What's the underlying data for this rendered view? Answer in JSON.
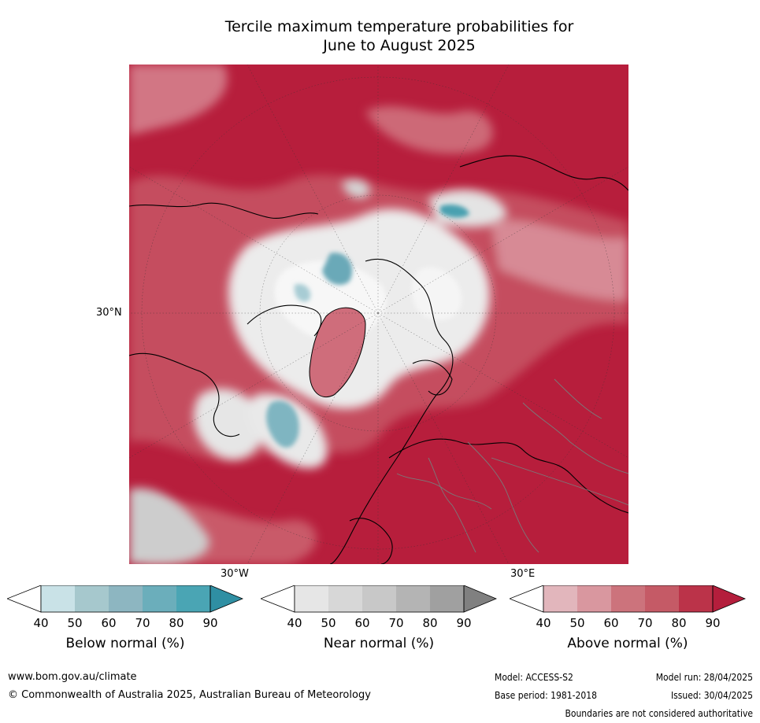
{
  "title_line1": "Tercile maximum temperature probabilities for",
  "title_line2": "June to August 2025",
  "map": {
    "projection": "north-polar-stereographic",
    "lat_label": "30°N",
    "lon_labels": [
      "30°W",
      "30°E"
    ],
    "colors": {
      "above_dark": "#b41e3c",
      "above_mid": "#c8505f",
      "above_light": "#dc8c96",
      "near": "#e6e6e6",
      "below": "#4aa5b4",
      "coast": "#000000",
      "borders": "#7a7a7a"
    }
  },
  "colorbars": [
    {
      "label": "Below normal (%)",
      "ticks": [
        "40",
        "50",
        "60",
        "70",
        "80",
        "90"
      ],
      "colors": [
        "#ffffff",
        "#c9e2e7",
        "#a6c8cd",
        "#8db6c1",
        "#6baebb",
        "#4aa5b4",
        "#2f8fa3"
      ]
    },
    {
      "label": "Near normal (%)",
      "ticks": [
        "40",
        "50",
        "60",
        "70",
        "80",
        "90"
      ],
      "colors": [
        "#ffffff",
        "#e6e6e6",
        "#d7d7d7",
        "#c8c8c8",
        "#b4b4b4",
        "#a0a0a0",
        "#808080"
      ]
    },
    {
      "label": "Above normal (%)",
      "ticks": [
        "40",
        "50",
        "60",
        "70",
        "80",
        "90"
      ],
      "colors": [
        "#ffffff",
        "#e2b6bc",
        "#d9979f",
        "#cc737c",
        "#c55a66",
        "#bb3349",
        "#b41e3c"
      ]
    }
  ],
  "footer": {
    "website": "www.bom.gov.au/climate",
    "copyright": "© Commonwealth of Australia 2025, Australian Bureau of Meteorology",
    "model": "Model: ACCESS-S2",
    "model_run": "Model run: 28/04/2025",
    "base_period": "Base period: 1981-2018",
    "issued": "Issued: 30/04/2025",
    "disclaimer": "Boundaries are not considered authoritative"
  }
}
